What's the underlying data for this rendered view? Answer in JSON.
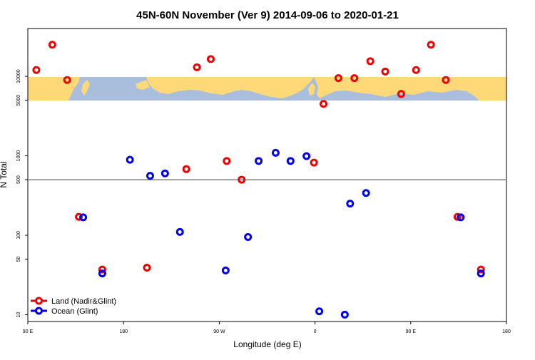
{
  "chart_data": {
    "type": "scatter",
    "title": "45N-60N November (Ver 9)   2014-09-06 to 2020-01-21",
    "xlabel": "Longitude (deg E)",
    "ylabel": "N Total",
    "x_scale": "linear",
    "y_scale": "log",
    "xlim": [
      90,
      540
    ],
    "ylim": [
      8.2,
      40000
    ],
    "grid": false,
    "reference_line": 500,
    "legend_position": "bottom-left",
    "x_ticks": [
      {
        "value": 90,
        "label": "90 E"
      },
      {
        "value": 180,
        "label": "180"
      },
      {
        "value": 270,
        "label": "90 W"
      },
      {
        "value": 360,
        "label": "0"
      },
      {
        "value": 450,
        "label": "90 E"
      },
      {
        "value": 540,
        "label": "180"
      }
    ],
    "y_ticks": [
      {
        "value": 10,
        "label": "10"
      },
      {
        "value": 50,
        "label": "50"
      },
      {
        "value": 100,
        "label": "100"
      },
      {
        "value": 500,
        "label": "500"
      },
      {
        "value": 1000,
        "label": "1000"
      },
      {
        "value": 5000,
        "label": "5000"
      },
      {
        "value": 10000,
        "label": "10000"
      }
    ],
    "series": [
      {
        "name": "Land (Nadir&Glint)",
        "color": "#ee0000",
        "points": [
          {
            "x": 98,
            "y": 12000
          },
          {
            "x": 113,
            "y": 25000
          },
          {
            "x": 127,
            "y": 9000
          },
          {
            "x": 138,
            "y": 170
          },
          {
            "x": 160,
            "y": 37
          },
          {
            "x": 202,
            "y": 39
          },
          {
            "x": 239,
            "y": 680
          },
          {
            "x": 249,
            "y": 13000
          },
          {
            "x": 262,
            "y": 16500
          },
          {
            "x": 277,
            "y": 860
          },
          {
            "x": 291,
            "y": 500
          },
          {
            "x": 359,
            "y": 820
          },
          {
            "x": 368,
            "y": 4500
          },
          {
            "x": 382,
            "y": 9500
          },
          {
            "x": 397,
            "y": 9500
          },
          {
            "x": 412,
            "y": 15500
          },
          {
            "x": 426,
            "y": 11500
          },
          {
            "x": 441,
            "y": 6000
          },
          {
            "x": 455,
            "y": 12000
          },
          {
            "x": 469,
            "y": 25000
          },
          {
            "x": 483,
            "y": 9000
          },
          {
            "x": 494,
            "y": 170
          },
          {
            "x": 516,
            "y": 37
          }
        ]
      },
      {
        "name": "Ocean (Glint)",
        "color": "#0000ee",
        "points": [
          {
            "x": 142,
            "y": 168
          },
          {
            "x": 160,
            "y": 33
          },
          {
            "x": 186,
            "y": 890
          },
          {
            "x": 205,
            "y": 560
          },
          {
            "x": 219,
            "y": 600
          },
          {
            "x": 233,
            "y": 110
          },
          {
            "x": 276,
            "y": 36
          },
          {
            "x": 297,
            "y": 95
          },
          {
            "x": 307,
            "y": 860
          },
          {
            "x": 323,
            "y": 1090
          },
          {
            "x": 337,
            "y": 860
          },
          {
            "x": 352,
            "y": 990
          },
          {
            "x": 364,
            "y": 11
          },
          {
            "x": 388,
            "y": 10
          },
          {
            "x": 393,
            "y": 250
          },
          {
            "x": 408,
            "y": 340
          },
          {
            "x": 497,
            "y": 168
          },
          {
            "x": 516,
            "y": 33
          }
        ]
      }
    ]
  }
}
